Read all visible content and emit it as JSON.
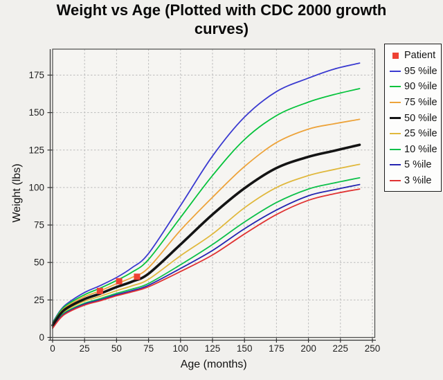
{
  "title_lines": [
    "Weight vs Age (Plotted with CDC 2000 growth",
    "curves)"
  ],
  "chart_data": {
    "type": "line",
    "title": "Weight vs Age (Plotted with CDC 2000 growth curves)",
    "xlabel": "Age (months)",
    "ylabel": "Weight (lbs)",
    "xlim": [
      0,
      252
    ],
    "ylim": [
      0,
      192
    ],
    "x_ticks": [
      0,
      25,
      50,
      75,
      100,
      125,
      150,
      175,
      200,
      225,
      250
    ],
    "y_ticks": [
      0,
      25,
      50,
      75,
      100,
      125,
      150,
      175
    ],
    "grid": true,
    "legend_position": "top-right",
    "x": [
      0,
      6,
      12,
      25,
      37,
      50,
      62,
      75,
      100,
      125,
      150,
      175,
      200,
      220,
      240
    ],
    "series": [
      {
        "name": "95 %ile",
        "color": "#3a3ad0",
        "stroke_width": 1.8,
        "values": [
          9.9,
          18,
          23,
          30,
          34.5,
          40,
          46.5,
          56,
          88,
          121,
          147,
          164,
          173,
          179,
          183
        ]
      },
      {
        "name": "90 %ile",
        "color": "#06c33c",
        "stroke_width": 1.8,
        "values": [
          9.4,
          17.5,
          22.2,
          28.5,
          32.8,
          38,
          43.5,
          52,
          80,
          108,
          132,
          148,
          157,
          162,
          166
        ]
      },
      {
        "name": "75 %ile",
        "color": "#eda33a",
        "stroke_width": 1.8,
        "values": [
          8.8,
          16.6,
          21.2,
          27.2,
          31,
          35.8,
          40,
          46.5,
          71.5,
          93.5,
          114,
          130,
          139,
          142.5,
          145.5
        ]
      },
      {
        "name": "50 %ile",
        "color": "#141414",
        "stroke_width": 3.6,
        "values": [
          8.1,
          15.6,
          20,
          25.6,
          29.2,
          33.6,
          37.2,
          42.5,
          62,
          82,
          99.5,
          113,
          120.5,
          124.5,
          128.5
        ]
      },
      {
        "name": "25 %ile",
        "color": "#e0b83c",
        "stroke_width": 1.8,
        "values": [
          7.4,
          14.6,
          18.8,
          24.2,
          27.4,
          31.2,
          34.4,
          38.8,
          54.5,
          69,
          86.5,
          100,
          108,
          112,
          115.5
        ]
      },
      {
        "name": "10 %ile",
        "color": "#0cc04a",
        "stroke_width": 1.8,
        "values": [
          6.8,
          13.8,
          17.8,
          22.8,
          25.8,
          29.4,
          32.2,
          36,
          48.5,
          62,
          77,
          90,
          99,
          103,
          106.5
        ]
      },
      {
        "name": "5 %ile",
        "color": "#2424b0",
        "stroke_width": 1.8,
        "values": [
          6.4,
          13.2,
          17.2,
          22.2,
          25,
          28.5,
          31.2,
          34.8,
          46,
          58,
          72.5,
          85,
          94.5,
          98.5,
          102
        ]
      },
      {
        "name": "3 %ile",
        "color": "#e03232",
        "stroke_width": 1.8,
        "values": [
          6.1,
          12.8,
          16.7,
          21.6,
          24.4,
          27.8,
          30.4,
          33.8,
          44,
          55,
          69,
          82,
          91.5,
          95.8,
          99
        ]
      }
    ],
    "patient": {
      "name": "Patient",
      "color": "#ee4133",
      "marker": "square",
      "points": [
        [
          37,
          31
        ],
        [
          52,
          37.5
        ],
        [
          66,
          40.5
        ]
      ]
    },
    "colors": {
      "grid": "#bcbcbc",
      "frame": "#4a4a4a",
      "axis": "#333333",
      "plot_bg": "#f6f5f2",
      "page_bg": "#f1f0ed",
      "legend_bg": "#fdfdfc",
      "legend_border": "#1a1a1a",
      "tick_label": "#1f1f1f",
      "axis_label": "#111111"
    }
  }
}
